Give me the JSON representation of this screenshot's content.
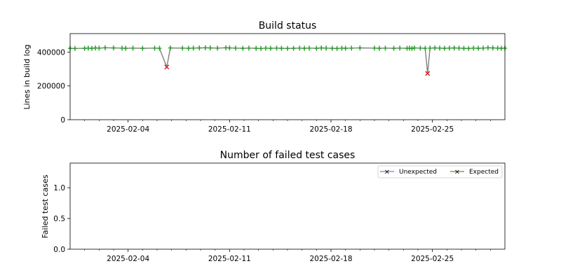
{
  "chart_data": [
    {
      "type": "scatter",
      "title": "Build status",
      "ylabel": "Lines in build log",
      "xlabel": "",
      "x_range": [
        "2025-01-31",
        "2025-03-02"
      ],
      "ylim": [
        0,
        510000
      ],
      "y_ticks": [
        0,
        200000,
        400000
      ],
      "y_tick_labels": [
        "0",
        "200000",
        "400000"
      ],
      "x_ticks": [
        "2025-02-04",
        "2025-02-11",
        "2025-02-18",
        "2025-02-25"
      ],
      "x_tick_labels": [
        "2025-02-04",
        "2025-02-11",
        "2025-02-18",
        "2025-02-25"
      ],
      "x_minor_ticks": [
        "2025-02-01",
        "2025-02-02",
        "2025-02-03",
        "2025-02-05",
        "2025-02-06",
        "2025-02-07",
        "2025-02-08",
        "2025-02-09",
        "2025-02-10",
        "2025-02-12",
        "2025-02-13",
        "2025-02-14",
        "2025-02-15",
        "2025-02-16",
        "2025-02-17",
        "2025-02-19",
        "2025-02-20",
        "2025-02-21",
        "2025-02-22",
        "2025-02-23",
        "2025-02-24",
        "2025-02-26",
        "2025-02-27",
        "2025-02-28",
        "2025-03-01"
      ],
      "grid": false,
      "colors": {
        "line": "#808080",
        "success": "#2ca02c",
        "failure": "#d62728"
      },
      "series": [
        {
          "status": "success",
          "marker": "plus",
          "points": [
            [
              "2025-01-31T00:00",
              423000
            ],
            [
              "2025-01-31T08:00",
              422000
            ],
            [
              "2025-02-01T00:00",
              423000
            ],
            [
              "2025-02-01T06:00",
              424000
            ],
            [
              "2025-02-01T12:00",
              423000
            ],
            [
              "2025-02-01T18:00",
              425000
            ],
            [
              "2025-02-02T00:00",
              424000
            ],
            [
              "2025-02-02T10:00",
              426000
            ],
            [
              "2025-02-03T00:00",
              425000
            ],
            [
              "2025-02-03T14:00",
              424000
            ],
            [
              "2025-02-03T20:00",
              423000
            ],
            [
              "2025-02-04T08:00",
              424000
            ],
            [
              "2025-02-05T00:00",
              423000
            ],
            [
              "2025-02-05T20:00",
              424000
            ],
            [
              "2025-02-06T04:00",
              423000
            ],
            [
              "2025-02-06T22:00",
              425000
            ],
            [
              "2025-02-07T18:00",
              424000
            ],
            [
              "2025-02-08T04:00",
              423000
            ],
            [
              "2025-02-08T12:00",
              424000
            ],
            [
              "2025-02-08T22:00",
              425000
            ],
            [
              "2025-02-09T08:00",
              426000
            ],
            [
              "2025-02-09T16:00",
              425000
            ],
            [
              "2025-02-10T04:00",
              424000
            ],
            [
              "2025-02-10T18:00",
              426000
            ],
            [
              "2025-02-11T00:00",
              425000
            ],
            [
              "2025-02-11T10:00",
              424000
            ],
            [
              "2025-02-11T22:00",
              423000
            ],
            [
              "2025-02-12T08:00",
              424000
            ],
            [
              "2025-02-12T20:00",
              423000
            ],
            [
              "2025-02-13T04:00",
              422000
            ],
            [
              "2025-02-13T12:00",
              424000
            ],
            [
              "2025-02-13T20:00",
              423000
            ],
            [
              "2025-02-14T06:00",
              424000
            ],
            [
              "2025-02-14T14:00",
              423000
            ],
            [
              "2025-02-15T00:00",
              422000
            ],
            [
              "2025-02-15T10:00",
              423000
            ],
            [
              "2025-02-15T20:00",
              424000
            ],
            [
              "2025-02-16T04:00",
              423000
            ],
            [
              "2025-02-16T12:00",
              424000
            ],
            [
              "2025-02-17T00:00",
              423000
            ],
            [
              "2025-02-17T08:00",
              425000
            ],
            [
              "2025-02-17T16:00",
              424000
            ],
            [
              "2025-02-18T02:00",
              423000
            ],
            [
              "2025-02-18T10:00",
              422000
            ],
            [
              "2025-02-18T18:00",
              424000
            ],
            [
              "2025-02-19T00:00",
              423000
            ],
            [
              "2025-02-19T10:00",
              424000
            ],
            [
              "2025-02-20T00:00",
              425000
            ],
            [
              "2025-02-21T00:00",
              424000
            ],
            [
              "2025-02-21T08:00",
              423000
            ],
            [
              "2025-02-21T18:00",
              424000
            ],
            [
              "2025-02-22T08:00",
              423000
            ],
            [
              "2025-02-22T18:00",
              424000
            ],
            [
              "2025-02-23T06:00",
              423000
            ],
            [
              "2025-02-23T10:00",
              424000
            ],
            [
              "2025-02-23T14:00",
              422000
            ],
            [
              "2025-02-23T18:00",
              425000
            ],
            [
              "2025-02-24T04:00",
              424000
            ],
            [
              "2025-02-24T12:00",
              423000
            ],
            [
              "2025-02-24T20:00",
              424000
            ],
            [
              "2025-02-25T04:00",
              425000
            ],
            [
              "2025-02-25T12:00",
              424000
            ],
            [
              "2025-02-25T20:00",
              423000
            ],
            [
              "2025-02-26T04:00",
              424000
            ],
            [
              "2025-02-26T12:00",
              425000
            ],
            [
              "2025-02-26T20:00",
              424000
            ],
            [
              "2025-02-27T04:00",
              423000
            ],
            [
              "2025-02-27T12:00",
              422000
            ],
            [
              "2025-02-27T20:00",
              424000
            ],
            [
              "2025-02-28T04:00",
              423000
            ],
            [
              "2025-02-28T12:00",
              424000
            ],
            [
              "2025-02-28T20:00",
              426000
            ],
            [
              "2025-03-01T04:00",
              425000
            ],
            [
              "2025-03-01T12:00",
              424000
            ],
            [
              "2025-03-01T18:00",
              423000
            ],
            [
              "2025-03-02T00:00",
              424000
            ]
          ]
        },
        {
          "status": "failure",
          "marker": "x",
          "points": [
            [
              "2025-02-06T16:00",
              312000
            ],
            [
              "2025-02-24T16:00",
              274000
            ]
          ]
        }
      ]
    },
    {
      "type": "line",
      "title": "Number of failed test cases",
      "ylabel": "Failed test cases",
      "xlabel": "",
      "x_range": [
        "2025-01-31",
        "2025-03-02"
      ],
      "ylim": [
        0,
        1.4
      ],
      "y_ticks": [
        0,
        0.5,
        1.0
      ],
      "y_tick_labels": [
        "0.0",
        "0.5",
        "1.0"
      ],
      "x_ticks": [
        "2025-02-04",
        "2025-02-11",
        "2025-02-18",
        "2025-02-25"
      ],
      "x_tick_labels": [
        "2025-02-04",
        "2025-02-11",
        "2025-02-18",
        "2025-02-25"
      ],
      "x_minor_ticks": [
        "2025-02-01",
        "2025-02-02",
        "2025-02-03",
        "2025-02-05",
        "2025-02-06",
        "2025-02-07",
        "2025-02-08",
        "2025-02-09",
        "2025-02-10",
        "2025-02-12",
        "2025-02-13",
        "2025-02-14",
        "2025-02-15",
        "2025-02-16",
        "2025-02-17",
        "2025-02-19",
        "2025-02-20",
        "2025-02-21",
        "2025-02-22",
        "2025-02-23",
        "2025-02-24",
        "2025-02-26",
        "2025-02-27",
        "2025-02-28",
        "2025-03-01"
      ],
      "grid": false,
      "legend": "top-right",
      "series": [
        {
          "name": "Unexpected",
          "color": "#7f7fbf",
          "marker": "x",
          "points": []
        },
        {
          "name": "Expected",
          "color": "#6b8e23",
          "marker": "x",
          "points": []
        }
      ]
    }
  ]
}
